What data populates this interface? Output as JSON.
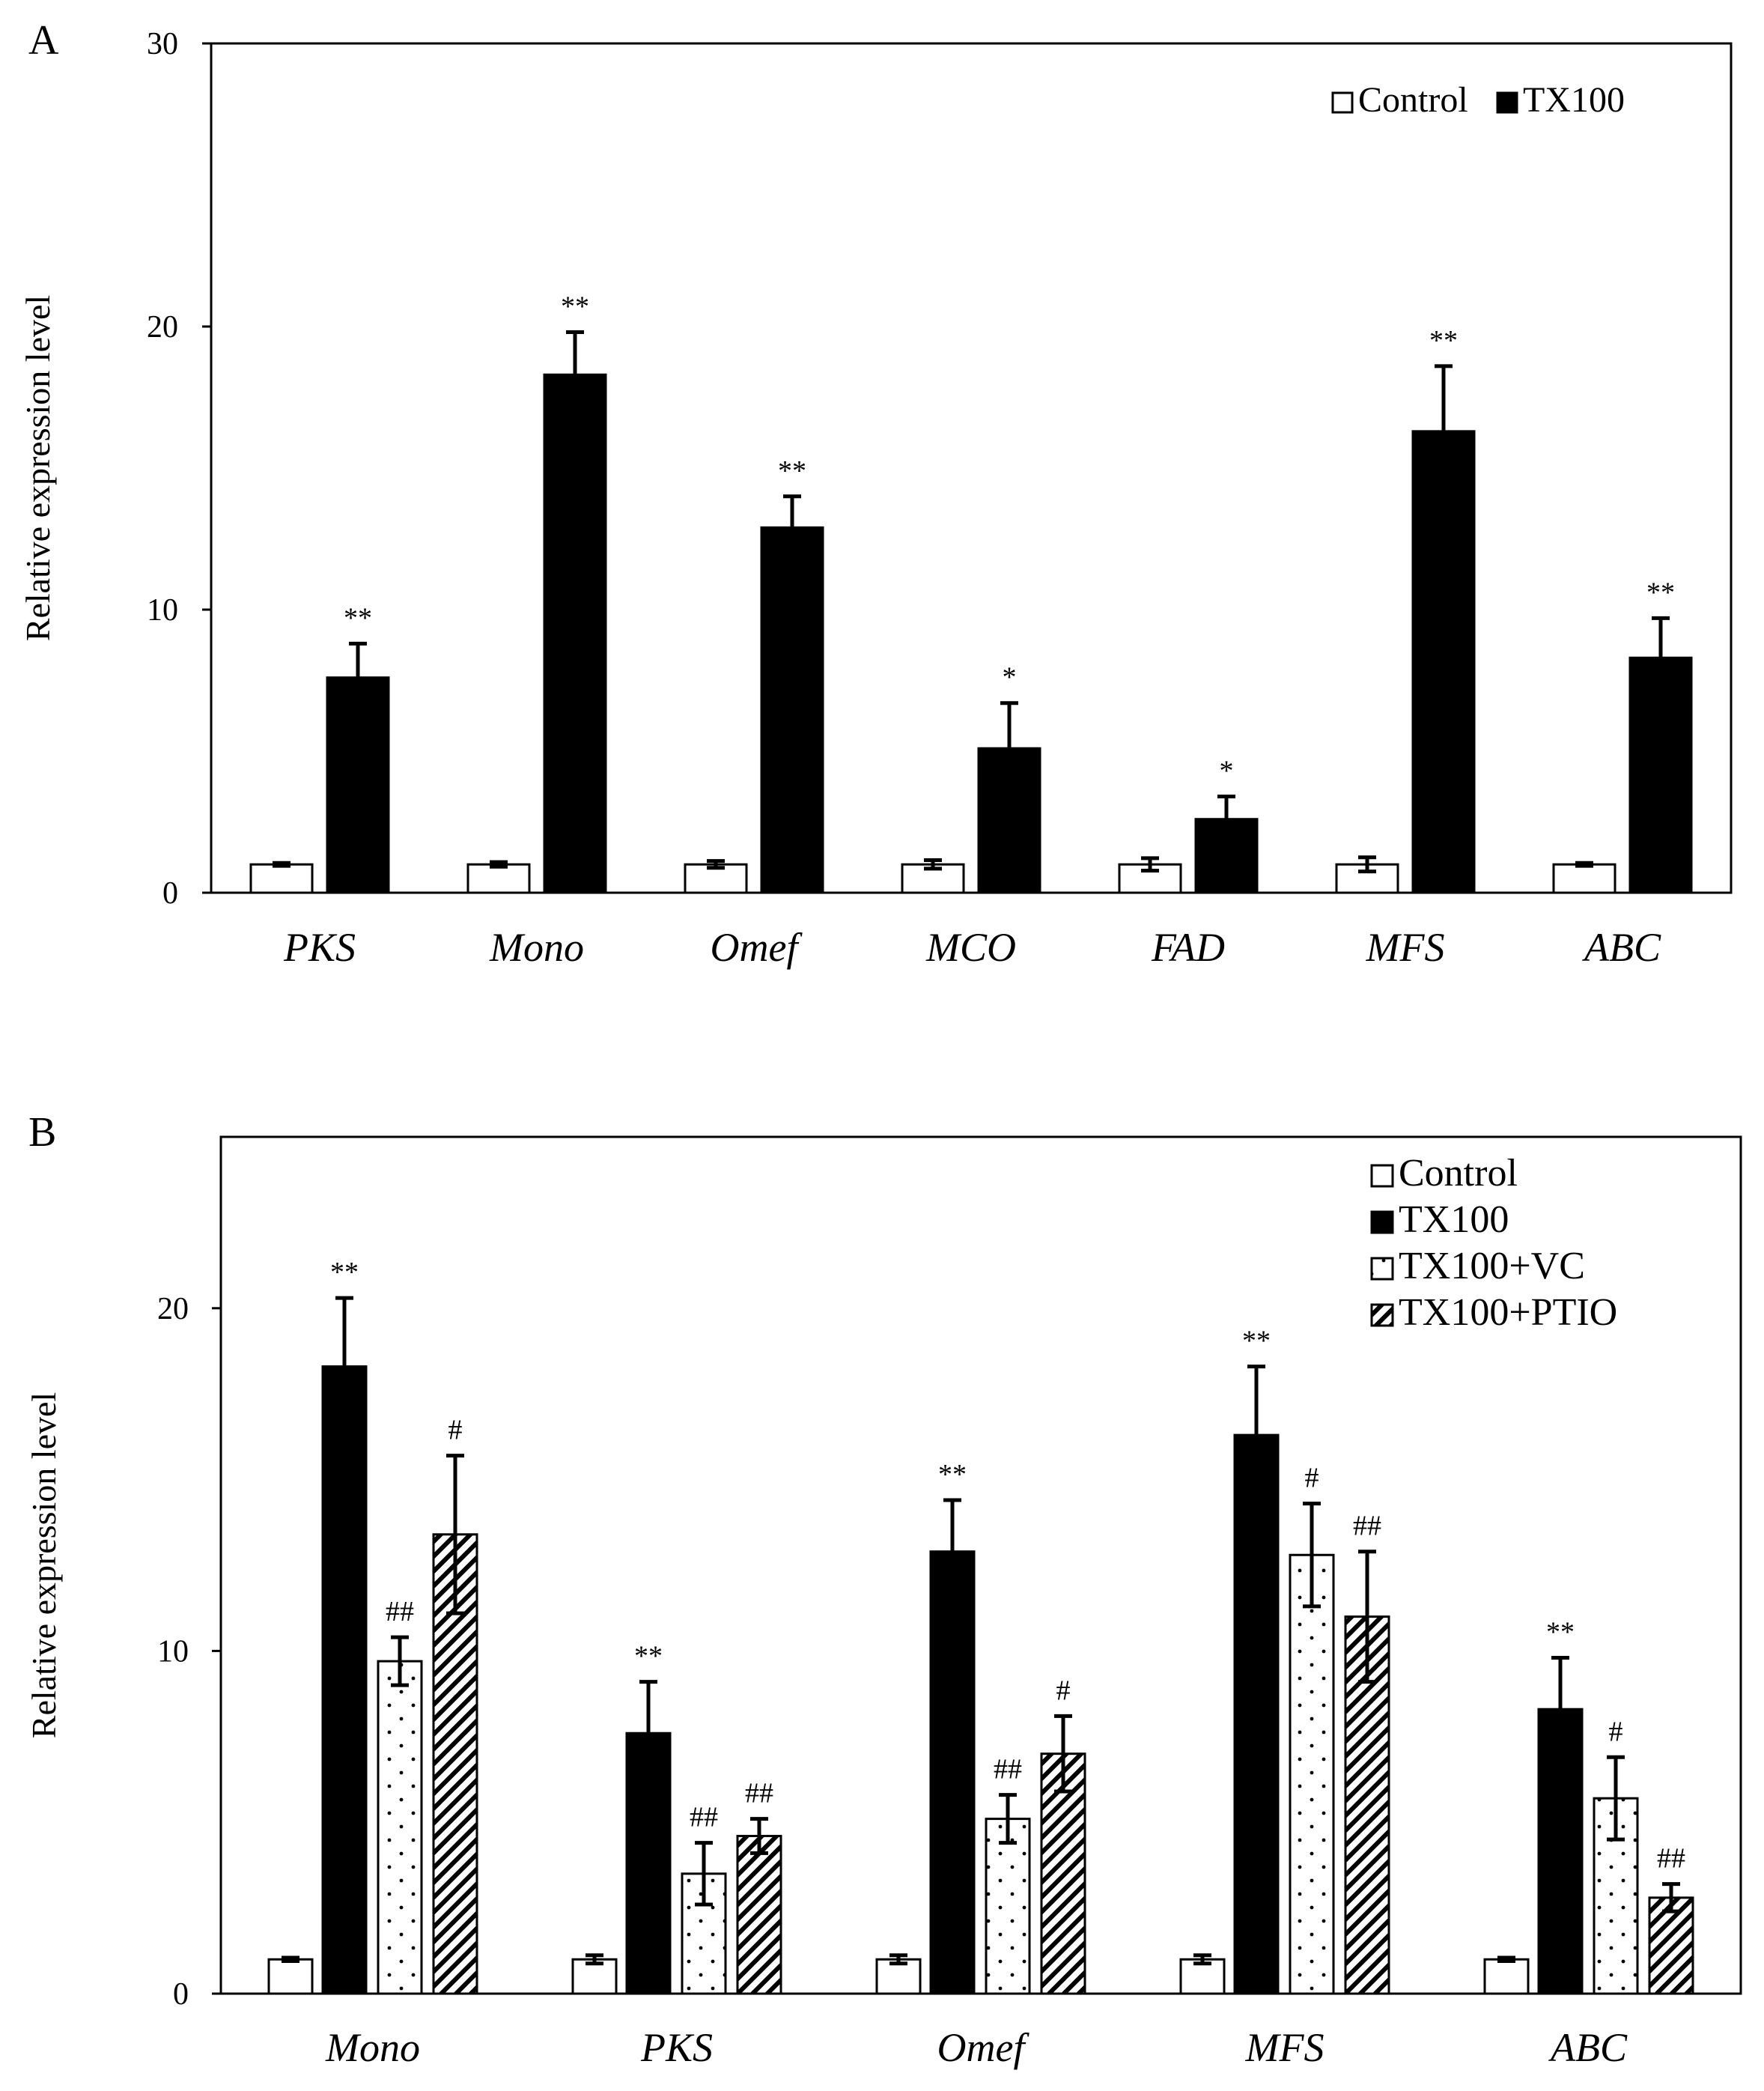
{
  "chart_data": [
    {
      "panel": "A",
      "type": "bar",
      "ylabel": "Relative expression level",
      "ylim": [
        0,
        30
      ],
      "yticks": [
        0,
        10,
        20,
        30
      ],
      "legend_position": "top-right",
      "categories": [
        "PKS",
        "Mono",
        "Omef",
        "MCO",
        "FAD",
        "MFS",
        "ABC"
      ],
      "series": [
        {
          "name": "Control",
          "fill": "white",
          "values": [
            1,
            1,
            1,
            1,
            1,
            1,
            1
          ],
          "errors": [
            0.05,
            0.08,
            0.12,
            0.15,
            0.22,
            0.25,
            0.05
          ],
          "annotations": [
            "",
            "",
            "",
            "",
            "",
            "",
            ""
          ]
        },
        {
          "name": "TX100",
          "fill": "black",
          "values": [
            7.6,
            18.3,
            12.9,
            5.1,
            2.6,
            16.3,
            8.3
          ],
          "errors": [
            1.2,
            1.5,
            1.1,
            1.6,
            0.8,
            2.3,
            1.4
          ],
          "annotations": [
            "**",
            "**",
            "**",
            "*",
            "*",
            "**",
            "**"
          ]
        }
      ]
    },
    {
      "panel": "B",
      "type": "bar",
      "ylabel": "Relative expression level",
      "ylim": [
        0,
        25
      ],
      "yticks": [
        0,
        10,
        20
      ],
      "legend_position": "top-right",
      "categories": [
        "Mono",
        "PKS",
        "Omef",
        "MFS",
        "ABC"
      ],
      "series": [
        {
          "name": "Control",
          "fill": "white",
          "values": [
            1,
            1,
            1,
            1,
            1
          ],
          "errors": [
            0.05,
            0.12,
            0.12,
            0.12,
            0.05
          ],
          "annotations": [
            "",
            "",
            "",
            "",
            ""
          ]
        },
        {
          "name": "TX100",
          "fill": "black",
          "values": [
            18.3,
            7.6,
            12.9,
            16.3,
            8.3
          ],
          "errors": [
            2.0,
            1.5,
            1.5,
            2.0,
            1.5
          ],
          "annotations": [
            "**",
            "**",
            "**",
            "**",
            "**"
          ]
        },
        {
          "name": "TX100+VC",
          "fill": "dots",
          "values": [
            9.7,
            3.5,
            5.1,
            12.8,
            5.7
          ],
          "errors": [
            0.7,
            0.9,
            0.7,
            1.5,
            1.2
          ],
          "annotations": [
            "##",
            "##",
            "##",
            "#",
            "#"
          ]
        },
        {
          "name": "TX100+PTIO",
          "fill": "hatch",
          "values": [
            13.4,
            4.6,
            7.0,
            11.0,
            2.8
          ],
          "errors": [
            2.3,
            0.5,
            1.1,
            1.9,
            0.4
          ],
          "annotations": [
            "#",
            "##",
            "#",
            "##",
            "##"
          ]
        }
      ]
    }
  ]
}
